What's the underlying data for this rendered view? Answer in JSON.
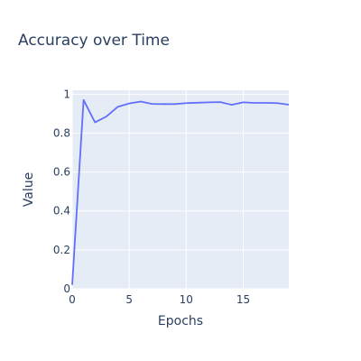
{
  "chart_data": {
    "type": "line",
    "title": "Accuracy over Time",
    "xlabel": "Epochs",
    "ylabel": "Value",
    "xlim": [
      0,
      19
    ],
    "ylim": [
      0,
      1.02
    ],
    "x_ticks": [
      0,
      5,
      10,
      15
    ],
    "y_ticks": [
      0,
      0.2,
      0.4,
      0.6,
      0.8,
      1
    ],
    "grid": true,
    "legend": "none",
    "colors": {
      "plot_bg": "#e5ecf6",
      "grid": "#ffffff",
      "line": "#636efa",
      "text": "#2a3f5f"
    },
    "series": [
      {
        "x": [
          0,
          1,
          2,
          3,
          4,
          5,
          6,
          7,
          8,
          9,
          10,
          11,
          12,
          13,
          14,
          15,
          16,
          17,
          18,
          19
        ],
        "values": [
          0.02,
          0.97,
          0.855,
          0.885,
          0.935,
          0.952,
          0.962,
          0.95,
          0.949,
          0.949,
          0.954,
          0.956,
          0.958,
          0.959,
          0.945,
          0.958,
          0.955,
          0.955,
          0.954,
          0.946
        ]
      }
    ]
  }
}
